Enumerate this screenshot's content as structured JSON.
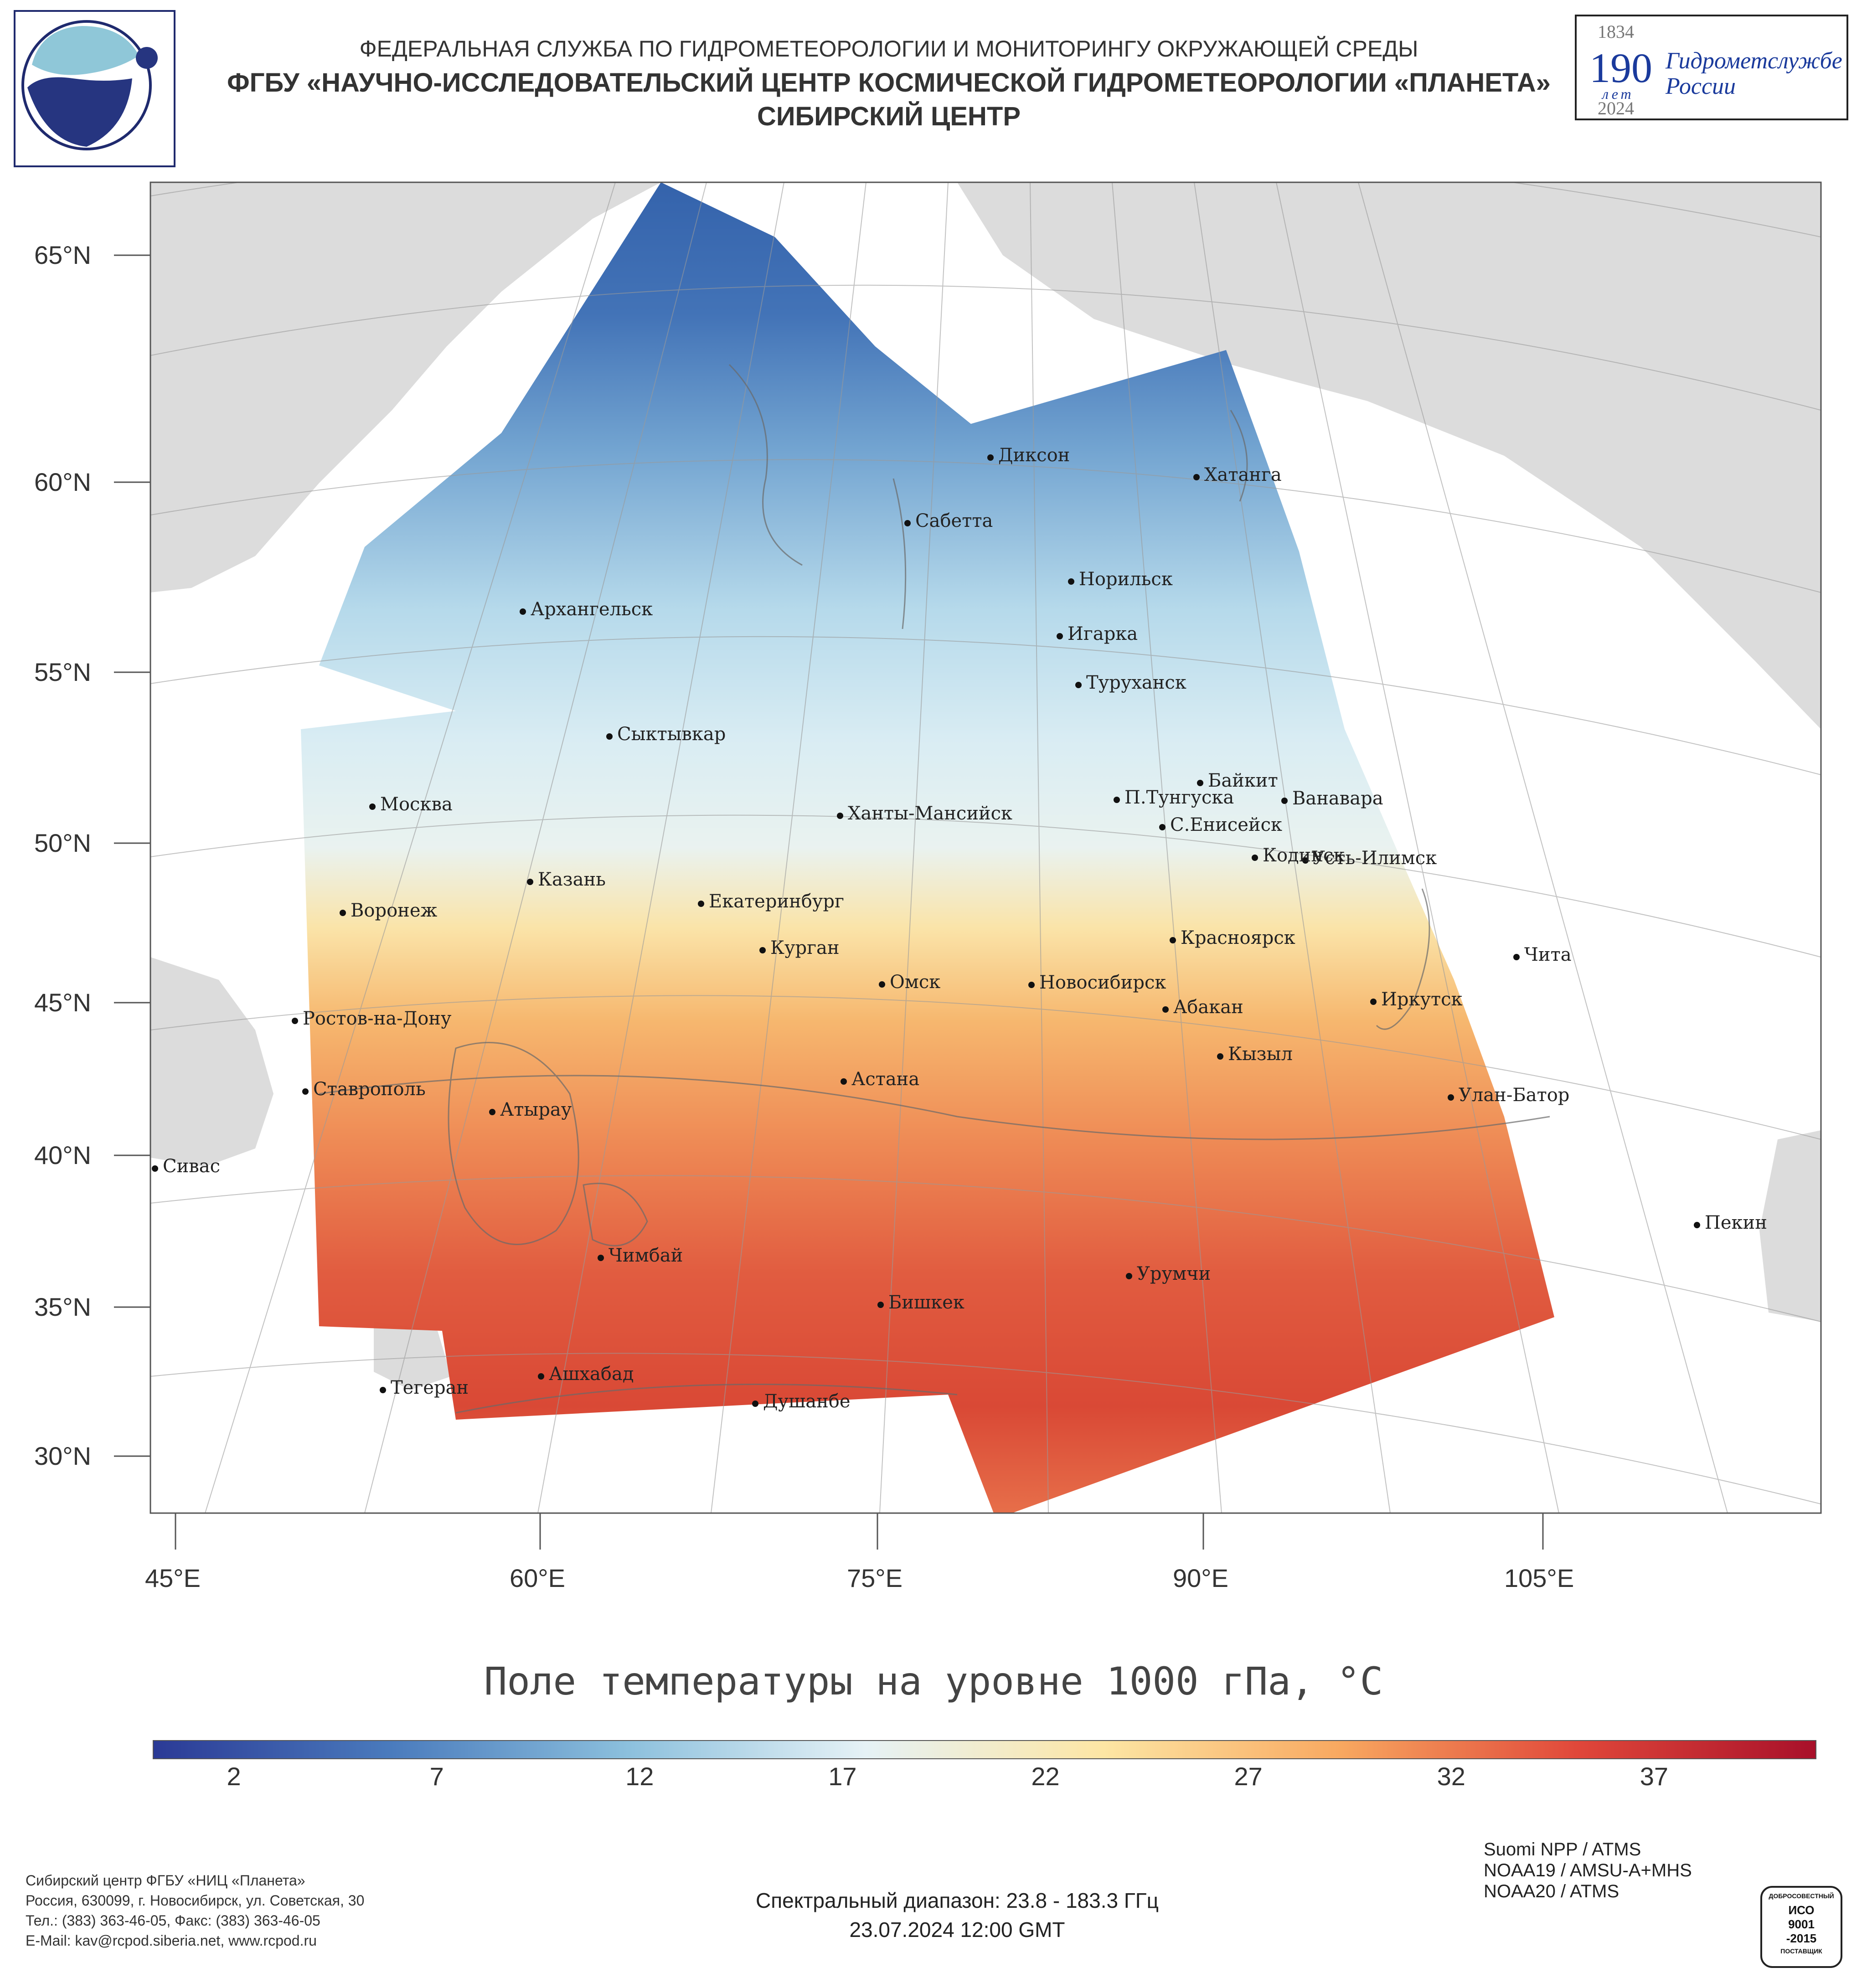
{
  "header": {
    "line1": "ФЕДЕРАЛЬНАЯ СЛУЖБА ПО ГИДРОМЕТЕОРОЛОГИИ И МОНИТОРИНГУ ОКРУЖАЮЩЕЙ СРЕДЫ",
    "line2": "ФГБУ «НАУЧНО-ИССЛЕДОВАТЕЛЬСКИЙ ЦЕНТР КОСМИЧЕСКОЙ ГИДРОМЕТЕОРОЛОГИИ «ПЛАНЕТА»",
    "line3": "СИБИРСКИЙ ЦЕНТР"
  },
  "anniversary": {
    "year_start": "1834",
    "number": "190",
    "years_word": "лет",
    "org_line1": "Гидрометслужбе",
    "org_line2": "России",
    "year_end": "2024"
  },
  "map": {
    "lat_labels": [
      "65°N",
      "60°N",
      "55°N",
      "50°N",
      "45°N",
      "40°N",
      "35°N",
      "30°N"
    ],
    "lon_labels": [
      "45°E",
      "60°E",
      "75°E",
      "90°E",
      "105°E"
    ],
    "cities": [
      "Диксон",
      "Хатанга",
      "Сабетта",
      "Норильск",
      "Архангельск",
      "Игарка",
      "Туруханск",
      "Сыктывкар",
      "Байкит",
      "П.Тунгуска",
      "Ванавара",
      "Москва",
      "Ханты-Мансийск",
      "С.Енисейск",
      "Кодинск",
      "Усть-Илимск",
      "Казань",
      "Екатеринбург",
      "Воронеж",
      "Красноярск",
      "Курган",
      "Чита",
      "Омск",
      "Новосибирск",
      "Иркутск",
      "Ростов-на-Дону",
      "Абакан",
      "Кызыл",
      "Астана",
      "Ставрополь",
      "Улан-Батор",
      "Атырау",
      "Сивас",
      "Пекин",
      "Чимбай",
      "Урумчи",
      "Бишкек",
      "Ашхабад",
      "Тегеран",
      "Душанбе"
    ]
  },
  "title": "Поле температуры на уровне 1000 гПа, °C",
  "colorbar": {
    "ticks": [
      "2",
      "7",
      "12",
      "17",
      "22",
      "27",
      "32",
      "37"
    ],
    "min": 0,
    "max": 41,
    "colors": [
      "#2b3a96",
      "#4a7bbd",
      "#8cc0dd",
      "#e6f2f6",
      "#fde6a4",
      "#f8a860",
      "#e0473a",
      "#a8102a"
    ]
  },
  "footer": {
    "org": "Сибирский центр ФГБУ «НИЦ «Планета»",
    "address": "Россия, 630099, г. Новосибирск, ул. Советская, 30",
    "phone": "Тел.: (383) 363-46-05, Факс: (383) 363-46-05",
    "email": "E-Mail: kav@rcpod.siberia.net, www.rcpod.ru",
    "spectral": "Спектральный диапазон: 23.8 - 183.3 ГГц",
    "datetime": "23.07.2024 12:00 GMT",
    "satellites": [
      "Suomi NPP / ATMS",
      "NOAA19 / AMSU-A+MHS",
      "NOAA20 / ATMS"
    ],
    "iso_top": "ДОБРОСОВЕСТНЫЙ",
    "iso_mid1": "ИСО",
    "iso_mid2": "9001",
    "iso_mid3": "-2015",
    "iso_bottom": "ПОСТАВЩИК"
  }
}
